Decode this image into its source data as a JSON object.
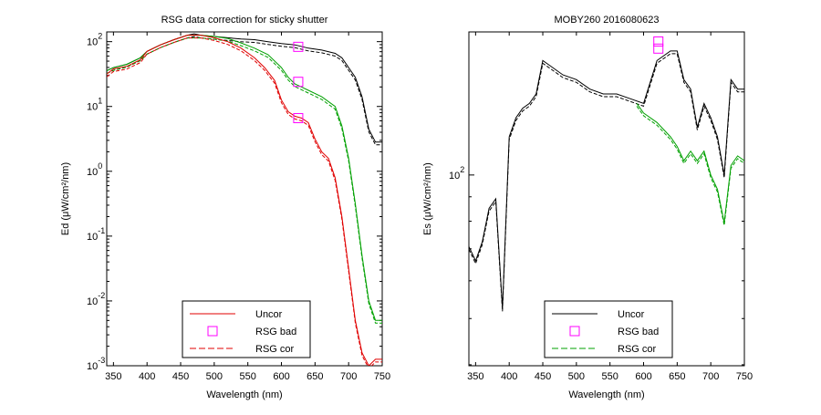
{
  "chart_data": [
    {
      "type": "line",
      "title": "RSG data correction for sticky shutter",
      "xlabel": "Wavelength (nm)",
      "ylabel": "Ed (μW/cm²/nm)",
      "xlim": [
        340,
        750
      ],
      "ylim_log10": [
        -3,
        2.15
      ],
      "yscale": "log",
      "grid": false,
      "x_ticks": [
        "350",
        "400",
        "450",
        "500",
        "550",
        "600",
        "650",
        "700",
        "750"
      ],
      "y_ticks": [
        {
          "base": "10",
          "exp": "2"
        },
        {
          "base": "10",
          "exp": "1"
        },
        {
          "base": "10",
          "exp": "0"
        },
        {
          "base": "10",
          "exp": "-1"
        },
        {
          "base": "10",
          "exp": "-2"
        },
        {
          "base": "10",
          "exp": "-3"
        }
      ],
      "legend": {
        "placement": "bottom",
        "entries": [
          {
            "label": "Uncor",
            "style": "solid",
            "color": "#e00000"
          },
          {
            "label": "RSG bad",
            "style": "square-marker",
            "color": "#ff00ff"
          },
          {
            "label": "RSG cor",
            "style": "dashed",
            "color": "#e00000"
          }
        ]
      },
      "series": [
        {
          "color": "#000000",
          "x": [
            340,
            350,
            370,
            390,
            400,
            420,
            440,
            460,
            470,
            480,
            500,
            520,
            540,
            560,
            580,
            600,
            620,
            640,
            660,
            680,
            690,
            700,
            710,
            720,
            730,
            740,
            750
          ],
          "y_log10": [
            1.55,
            1.6,
            1.65,
            1.75,
            1.85,
            1.95,
            2.03,
            2.1,
            2.12,
            2.1,
            2.08,
            2.06,
            2.04,
            2.03,
            2.0,
            1.97,
            1.95,
            1.9,
            1.87,
            1.82,
            1.75,
            1.6,
            1.45,
            1.15,
            0.65,
            0.45,
            0.45
          ]
        },
        {
          "color": "#00a000",
          "x": [
            340,
            350,
            370,
            390,
            400,
            420,
            440,
            460,
            480,
            500,
            520,
            540,
            560,
            580,
            600,
            610,
            620,
            630,
            640,
            660,
            680,
            690,
            700,
            710,
            720,
            730,
            740,
            750
          ],
          "y_log10": [
            1.55,
            1.6,
            1.65,
            1.75,
            1.85,
            1.95,
            2.03,
            2.1,
            2.1,
            2.08,
            2.05,
            1.98,
            1.9,
            1.8,
            1.6,
            1.45,
            1.35,
            1.3,
            1.25,
            1.15,
            1.0,
            0.7,
            0.2,
            -0.5,
            -1.3,
            -2.0,
            -2.3,
            -2.3
          ]
        },
        {
          "color": "#e00000",
          "x": [
            340,
            350,
            370,
            390,
            400,
            420,
            440,
            460,
            480,
            500,
            520,
            540,
            560,
            575,
            590,
            600,
            610,
            620,
            630,
            640,
            650,
            660,
            670,
            680,
            690,
            700,
            710,
            720,
            730,
            740,
            750
          ],
          "y_log10": [
            1.5,
            1.58,
            1.62,
            1.72,
            1.85,
            1.95,
            2.03,
            2.1,
            2.1,
            2.06,
            2.0,
            1.9,
            1.75,
            1.6,
            1.4,
            1.1,
            0.92,
            0.85,
            0.82,
            0.75,
            0.5,
            0.3,
            0.2,
            -0.1,
            -0.7,
            -1.5,
            -2.3,
            -2.8,
            -3.0,
            -2.9,
            -2.9
          ]
        }
      ],
      "rsg_bad_points": [
        {
          "x": 625,
          "y_log10": 1.92
        },
        {
          "x": 625,
          "y_log10": 1.38
        },
        {
          "x": 625,
          "y_log10": 0.82
        }
      ]
    },
    {
      "type": "line",
      "title": "MOBY260  2016080623",
      "xlabel": "Wavelength (nm)",
      "ylabel": "Es (μW/cm²/nm)",
      "xlim": [
        340,
        750
      ],
      "ylim_log10": [
        1.6,
        2.3
      ],
      "yscale": "log",
      "grid": false,
      "x_ticks": [
        "350",
        "400",
        "450",
        "500",
        "550",
        "600",
        "650",
        "700",
        "750"
      ],
      "y_ticks": [
        {
          "base": "10",
          "exp": "2"
        }
      ],
      "legend": {
        "placement": "bottom",
        "entries": [
          {
            "label": "Uncor",
            "style": "solid",
            "color": "#000000"
          },
          {
            "label": "RSG bad",
            "style": "square-marker",
            "color": "#ff00ff"
          },
          {
            "label": "RSG cor",
            "style": "dashed",
            "color": "#00a000"
          }
        ]
      },
      "series": [
        {
          "color": "#000000",
          "x": [
            340,
            350,
            360,
            370,
            380,
            390,
            400,
            410,
            420,
            430,
            440,
            450,
            460,
            480,
            500,
            520,
            540,
            560,
            580,
            600,
            620,
            640,
            650,
            660,
            670,
            680,
            690,
            700,
            710,
            720,
            730,
            740,
            750
          ],
          "y_log10": [
            1.85,
            1.82,
            1.86,
            1.93,
            1.95,
            1.72,
            2.08,
            2.12,
            2.14,
            2.15,
            2.17,
            2.24,
            2.23,
            2.21,
            2.2,
            2.18,
            2.17,
            2.17,
            2.16,
            2.15,
            2.24,
            2.26,
            2.26,
            2.2,
            2.18,
            2.1,
            2.15,
            2.12,
            2.08,
            2.0,
            2.2,
            2.18,
            2.18
          ]
        },
        {
          "color": "#00a000",
          "x": [
            590,
            600,
            620,
            640,
            650,
            660,
            670,
            680,
            690,
            700,
            710,
            720,
            730,
            740,
            750
          ],
          "y_log10": [
            2.15,
            2.13,
            2.11,
            2.08,
            2.06,
            2.03,
            2.05,
            2.03,
            2.05,
            2.0,
            1.97,
            1.9,
            2.02,
            2.04,
            2.03
          ]
        }
      ],
      "rsg_bad_points": [
        {
          "x": 622,
          "y_log10": 2.28
        },
        {
          "x": 622,
          "y_log10": 2.265
        }
      ]
    }
  ]
}
